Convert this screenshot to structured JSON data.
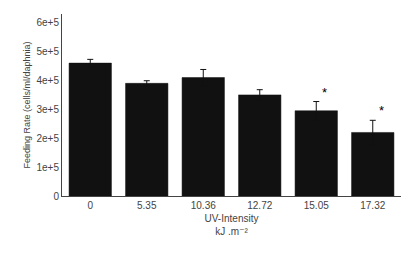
{
  "chart_data": {
    "type": "bar",
    "categories": [
      "0",
      "5.35",
      "10.36",
      "12.72",
      "15.05",
      "17.32"
    ],
    "values": [
      460000,
      390000,
      410000,
      350000,
      295000,
      220000
    ],
    "errors": [
      13000,
      9000,
      28000,
      18000,
      32000,
      42000
    ],
    "color": "#111111",
    "xlabel": "UV-Intensity\nkJ .m⁻²",
    "ylabel": "Feeding Rate (cells/ml/daphnia)",
    "ylim": [
      0,
      630000
    ],
    "yticks": [
      0,
      {
        "value": 100000,
        "label": "1e+5"
      },
      {
        "value": 200000,
        "label": "2e+5"
      },
      {
        "value": 300000,
        "label": "3e+5"
      },
      {
        "value": 400000,
        "label": "4e+5"
      },
      {
        "value": 500000,
        "label": "5e+5"
      },
      {
        "value": 600000,
        "label": "6e+5"
      }
    ],
    "annotations": [
      {
        "category": "15.05",
        "text": "*"
      },
      {
        "category": "17.32",
        "text": "*"
      }
    ],
    "grid": false
  }
}
